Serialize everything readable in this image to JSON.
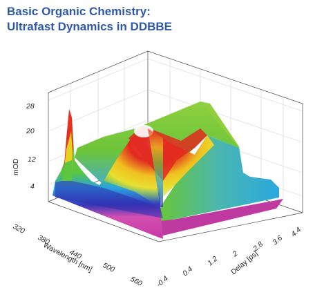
{
  "header": {
    "title_line1": "Basic Organic Chemistry:",
    "title_line2": "Ultrafast Dynamics in DDBBE"
  },
  "chart_data": {
    "type": "surface3d",
    "title": "Basic Organic Chemistry: Ultrafast Dynamics in DDBBE",
    "xlabel": "Wavelength [nm]",
    "ylabel": "Delay [ps]",
    "zlabel": "mOD",
    "x_ticks": [
      "320",
      "380",
      "440",
      "500",
      "560"
    ],
    "y_ticks": [
      "-0.4",
      "0.4",
      "1.2",
      "2",
      "2.8",
      "3.6",
      "4.4"
    ],
    "z_ticks": [
      "4",
      "12",
      "20",
      "28"
    ],
    "x_range": [
      320,
      560
    ],
    "y_range": [
      -0.4,
      4.4
    ],
    "z_range": [
      0,
      28
    ],
    "colormap": [
      "#7a2c8f",
      "#d84aa8",
      "#2b2bb0",
      "#2aa8e0",
      "#66c83a",
      "#e8e020",
      "#e82020",
      "#ffffff"
    ],
    "features": [
      {
        "wavelength_nm": 330,
        "delay_ps": -0.2,
        "mOD": 27
      },
      {
        "wavelength_nm": 440,
        "delay_ps": 0.3,
        "mOD": 26
      },
      {
        "wavelength_nm": 370,
        "delay_ps": 0.6,
        "mOD": 6
      }
    ]
  }
}
